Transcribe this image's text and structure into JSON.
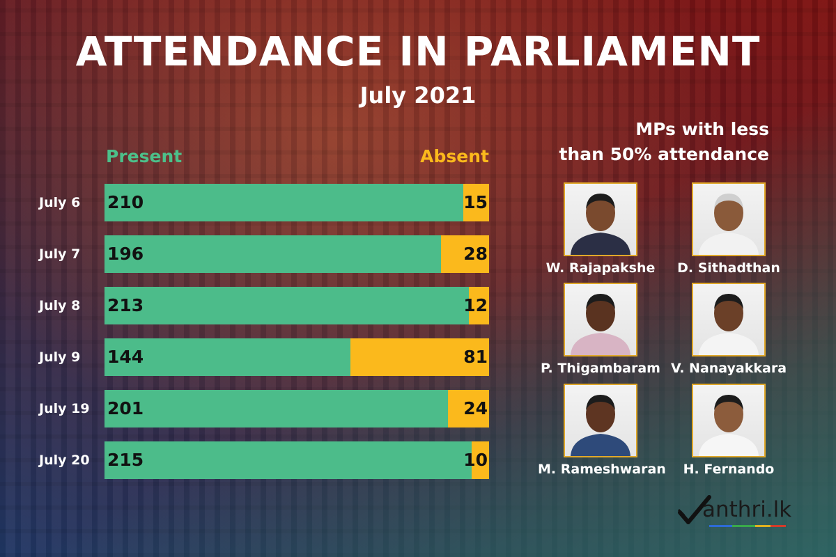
{
  "title": "ATTENDANCE IN PARLIAMENT",
  "subtitle": "July 2021",
  "legend": {
    "present": "Present",
    "absent": "Absent"
  },
  "colors": {
    "present": "#4cbc8a",
    "absent": "#fbb91c",
    "photo_border": "#e0a82a"
  },
  "chart_data": {
    "type": "bar",
    "orientation": "horizontal",
    "stacked": true,
    "categories": [
      "July 6",
      "July 7",
      "July 8",
      "July 9",
      "July 19",
      "July 20"
    ],
    "series": [
      {
        "name": "Present",
        "values": [
          210,
          196,
          213,
          144,
          201,
          215
        ]
      },
      {
        "name": "Absent",
        "values": [
          15,
          28,
          12,
          81,
          24,
          10
        ]
      }
    ],
    "legend_position": "top",
    "grid": false
  },
  "mps": {
    "heading_line1": "MPs with less",
    "heading_line2": "than 50% attendance",
    "items": [
      {
        "name": "W. Rajapakshe",
        "photo": "portrait-photo"
      },
      {
        "name": "D. Sithadthan",
        "photo": "portrait-photo"
      },
      {
        "name": "P. Thigambaram",
        "photo": "portrait-photo"
      },
      {
        "name": "V. Nanayakkara",
        "photo": "portrait-photo"
      },
      {
        "name": "M. Rameshwaran",
        "photo": "portrait-photo"
      },
      {
        "name": "H. Fernando",
        "photo": "portrait-photo"
      }
    ]
  },
  "logo": {
    "text": "anthri.lk",
    "icon": "checkmark-m-icon"
  }
}
